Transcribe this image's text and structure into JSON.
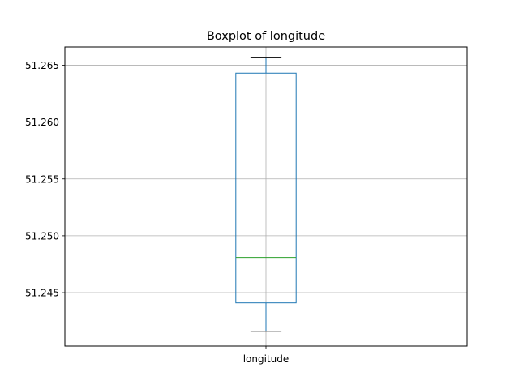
{
  "chart_data": {
    "type": "boxplot",
    "title": "Boxplot of longitude",
    "xlabel": "",
    "ylabel": "",
    "categories": [
      "longitude"
    ],
    "ylim": [
      51.2403,
      51.2666
    ],
    "yticks": [
      {
        "value": 51.245,
        "label": "51.245"
      },
      {
        "value": 51.25,
        "label": "51.250"
      },
      {
        "value": 51.255,
        "label": "51.255"
      },
      {
        "value": 51.26,
        "label": "51.260"
      },
      {
        "value": 51.265,
        "label": "51.265"
      }
    ],
    "grid": true,
    "boxes": [
      {
        "name": "longitude",
        "whisker_low": 51.2416,
        "q1": 51.2441,
        "median": 51.2481,
        "q3": 51.2643,
        "whisker_high": 51.2657
      }
    ],
    "colors": {
      "box": "#1f77b4",
      "median": "#2ca02c",
      "whisker_cap": "#000000",
      "grid": "#b0b0b0"
    }
  }
}
